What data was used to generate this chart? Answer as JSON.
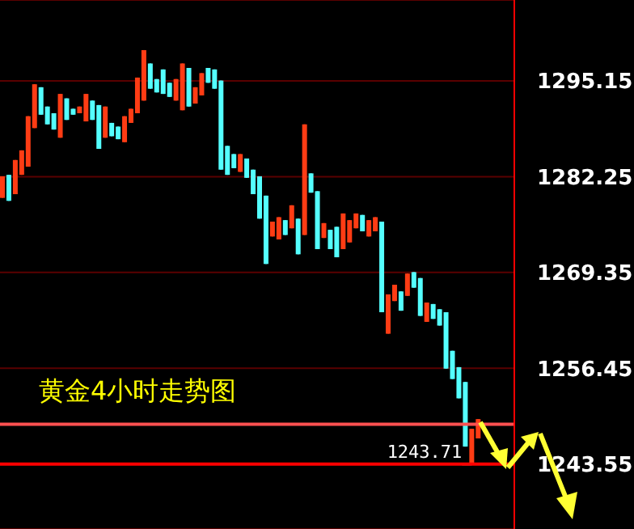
{
  "chart_data": {
    "type": "candlestick",
    "title": "黄金4小时走势图",
    "categories": [
      null,
      null,
      null,
      null,
      null,
      null,
      null,
      null,
      null,
      null,
      null,
      null,
      null,
      null,
      null,
      null,
      null,
      null,
      null,
      null,
      null,
      null,
      null,
      null,
      null,
      null,
      null,
      null,
      null,
      null,
      null,
      null,
      null,
      null,
      null,
      null,
      null,
      null,
      null,
      null,
      null,
      null,
      null,
      null,
      null,
      null,
      null,
      null,
      null,
      null,
      null,
      null,
      null,
      null,
      null,
      null,
      null,
      null,
      null,
      null,
      null,
      null,
      null,
      null,
      null,
      null,
      null,
      null,
      null,
      null,
      null,
      null,
      null,
      null,
      null
    ],
    "ohlc": [
      [
        1279.4,
        1282.3,
        1279.4,
        1282.3
      ],
      [
        1282.5,
        1282.5,
        1279.0,
        1279.0
      ],
      [
        1279.9,
        1284.5,
        1279.9,
        1284.5
      ],
      [
        1282.5,
        1285.8,
        1282.5,
        1285.8
      ],
      [
        1283.6,
        1290.4,
        1283.6,
        1290.4
      ],
      [
        1288.8,
        1294.7,
        1288.8,
        1294.7
      ],
      [
        1294.3,
        1294.3,
        1290.6,
        1290.6
      ],
      [
        1291.7,
        1291.7,
        1289.3,
        1289.3
      ],
      [
        1290.8,
        1290.8,
        1288.6,
        1288.6
      ],
      [
        1287.5,
        1293.4,
        1287.5,
        1293.4
      ],
      [
        1292.8,
        1292.8,
        1289.9,
        1289.9
      ],
      [
        1291.4,
        1291.4,
        1290.6,
        1290.6
      ],
      [
        1290.8,
        1291.7,
        1290.8,
        1291.7
      ],
      [
        1289.7,
        1293.4,
        1289.7,
        1293.4
      ],
      [
        1292.5,
        1292.5,
        1289.9,
        1289.9
      ],
      [
        1291.9,
        1291.9,
        1286.0,
        1286.0
      ],
      [
        1287.5,
        1291.7,
        1287.5,
        1291.7
      ],
      [
        1289.5,
        1289.5,
        1287.7,
        1287.7
      ],
      [
        1289.0,
        1289.0,
        1287.3,
        1287.3
      ],
      [
        1286.9,
        1290.4,
        1286.9,
        1290.4
      ],
      [
        1289.5,
        1291.4,
        1289.5,
        1291.4
      ],
      [
        1290.8,
        1295.6,
        1290.8,
        1295.6
      ],
      [
        1292.5,
        1299.3,
        1292.5,
        1299.3
      ],
      [
        1297.5,
        1297.5,
        1294.1,
        1294.1
      ],
      [
        1295.4,
        1295.4,
        1293.6,
        1293.6
      ],
      [
        1296.7,
        1296.7,
        1293.4,
        1293.4
      ],
      [
        1294.9,
        1294.9,
        1293.0,
        1293.0
      ],
      [
        1292.5,
        1295.4,
        1292.5,
        1295.4
      ],
      [
        1291.2,
        1297.5,
        1291.2,
        1297.5
      ],
      [
        1296.9,
        1296.9,
        1291.7,
        1291.7
      ],
      [
        1292.1,
        1294.3,
        1292.1,
        1294.3
      ],
      [
        1293.2,
        1296.2,
        1293.2,
        1296.2
      ],
      [
        1296.9,
        1296.9,
        1294.9,
        1294.9
      ],
      [
        1296.7,
        1296.7,
        1294.1,
        1294.1
      ],
      [
        1295.2,
        1295.2,
        1283.2,
        1283.2
      ],
      [
        1286.4,
        1286.4,
        1282.5,
        1282.5
      ],
      [
        1285.3,
        1285.3,
        1283.4,
        1283.4
      ],
      [
        1282.9,
        1285.3,
        1282.9,
        1285.3
      ],
      [
        1284.7,
        1284.7,
        1282.1,
        1282.1
      ],
      [
        1283.2,
        1283.2,
        1279.9,
        1279.9
      ],
      [
        1282.3,
        1282.3,
        1276.6,
        1276.6
      ],
      [
        1279.7,
        1279.7,
        1270.5,
        1270.5
      ],
      [
        1274.2,
        1276.2,
        1274.2,
        1276.2
      ],
      [
        1273.8,
        1276.8,
        1273.8,
        1276.8
      ],
      [
        1276.4,
        1276.4,
        1274.4,
        1274.4
      ],
      [
        1275.3,
        1278.4,
        1275.3,
        1278.4
      ],
      [
        1276.6,
        1276.6,
        1271.8,
        1271.8
      ],
      [
        1274.4,
        1289.3,
        1274.4,
        1289.3
      ],
      [
        1282.7,
        1282.7,
        1280.1,
        1280.1
      ],
      [
        1280.3,
        1280.3,
        1272.5,
        1272.5
      ],
      [
        1274.0,
        1276.0,
        1274.0,
        1276.0
      ],
      [
        1275.1,
        1275.1,
        1272.5,
        1272.5
      ],
      [
        1275.5,
        1275.5,
        1271.4,
        1271.4
      ],
      [
        1272.5,
        1277.3,
        1272.5,
        1277.3
      ],
      [
        1273.4,
        1276.4,
        1273.4,
        1276.4
      ],
      [
        1275.3,
        1277.3,
        1275.3,
        1277.3
      ],
      [
        1277.1,
        1277.1,
        1274.9,
        1274.9
      ],
      [
        1274.2,
        1276.4,
        1274.2,
        1276.4
      ],
      [
        1274.9,
        1276.8,
        1274.9,
        1276.8
      ],
      [
        1276.2,
        1276.2,
        1264.0,
        1264.0
      ],
      [
        1261.1,
        1266.4,
        1261.1,
        1266.4
      ],
      [
        1265.5,
        1267.7,
        1265.5,
        1267.7
      ],
      [
        1266.8,
        1266.8,
        1264.2,
        1264.2
      ],
      [
        1266.2,
        1269.2,
        1266.2,
        1269.2
      ],
      [
        1269.4,
        1269.4,
        1267.3,
        1267.3
      ],
      [
        1268.6,
        1268.6,
        1263.5,
        1263.5
      ],
      [
        1262.7,
        1265.3,
        1262.7,
        1265.3
      ],
      [
        1265.1,
        1265.1,
        1263.1,
        1263.1
      ],
      [
        1264.4,
        1264.4,
        1262.2,
        1262.2
      ],
      [
        1264.0,
        1264.0,
        1256.4,
        1256.4
      ],
      [
        1258.8,
        1258.8,
        1255.0,
        1255.0
      ],
      [
        1256.6,
        1256.6,
        1252.4,
        1252.4
      ],
      [
        1254.6,
        1254.6,
        1245.9,
        1245.9
      ],
      [
        1243.71,
        1248.3,
        1243.71,
        1248.3
      ],
      [
        1247.0,
        1249.6,
        1247.0,
        1249.6
      ]
    ],
    "colors": [
      "#ff3c14",
      "#54ffff",
      "#ff3c14",
      "#ff3c14",
      "#ff3c14",
      "#ff3c14",
      "#54ffff",
      "#54ffff",
      "#54ffff",
      "#ff3c14",
      "#54ffff",
      "#54ffff",
      "#ff3c14",
      "#ff3c14",
      "#54ffff",
      "#54ffff",
      "#ff3c14",
      "#54ffff",
      "#54ffff",
      "#ff3c14",
      "#ff3c14",
      "#ff3c14",
      "#ff3c14",
      "#54ffff",
      "#54ffff",
      "#54ffff",
      "#54ffff",
      "#ff3c14",
      "#ff3c14",
      "#54ffff",
      "#ff3c14",
      "#ff3c14",
      "#54ffff",
      "#54ffff",
      "#54ffff",
      "#54ffff",
      "#54ffff",
      "#ff3c14",
      "#54ffff",
      "#54ffff",
      "#54ffff",
      "#54ffff",
      "#ff3c14",
      "#ff3c14",
      "#54ffff",
      "#ff3c14",
      "#54ffff",
      "#ff3c14",
      "#54ffff",
      "#54ffff",
      "#ff3c14",
      "#54ffff",
      "#54ffff",
      "#ff3c14",
      "#ff3c14",
      "#ff3c14",
      "#54ffff",
      "#ff3c14",
      "#ff3c14",
      "#54ffff",
      "#ff3c14",
      "#ff3c14",
      "#54ffff",
      "#ff3c14",
      "#54ffff",
      "#54ffff",
      "#ff3c14",
      "#54ffff",
      "#54ffff",
      "#54ffff",
      "#54ffff",
      "#54ffff",
      "#54ffff",
      "#ff3c14",
      "#ff3c14"
    ],
    "ylim": [
      1234.8,
      1306.05
    ],
    "yticks": [
      1295.15,
      1282.25,
      1269.35,
      1256.45,
      1243.55
    ],
    "grid": "y",
    "ref_lines": [
      {
        "axis": "y",
        "value": 1248.9,
        "color": "#ff5050"
      },
      {
        "axis": "y",
        "value": 1243.55,
        "color": "#ff0000"
      }
    ],
    "annotations": [
      {
        "text": "1243.71",
        "y": 1243.71
      }
    ]
  }
}
